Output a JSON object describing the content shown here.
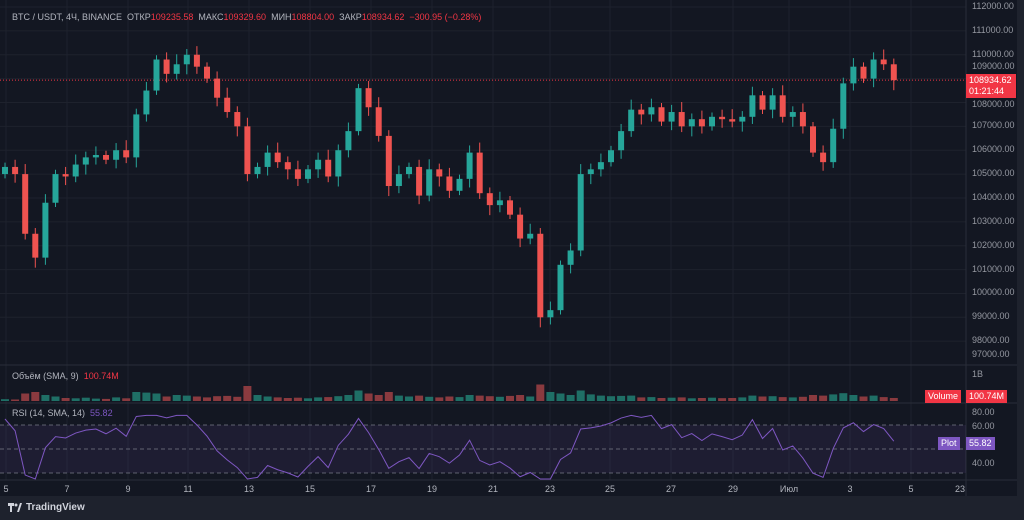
{
  "header": {
    "symbol": "BTC / USDT, 4Ч, BINANCE",
    "open_label": "ОТКР",
    "open": "109235.58",
    "high_label": "МАКС",
    "high": "109329.60",
    "low_label": "МИН",
    "low": "108804.00",
    "close_label": "ЗАКР",
    "close": "108934.62",
    "change": "−300.95 (−0.28%)"
  },
  "price_axis": [
    "112000.00",
    "111000.00",
    "110000.00",
    "109000.00",
    "108000.00",
    "107000.00",
    "106000.00",
    "105000.00",
    "104000.00",
    "103000.00",
    "102000.00",
    "101000.00",
    "100000.00",
    "99000.00",
    "98000.00",
    "97000.00"
  ],
  "current_price": {
    "value": "108934.62",
    "countdown": "01:21:44"
  },
  "volume": {
    "legend": "Объём (SMA, 9)",
    "value": "100.74M",
    "axis_top": "1B",
    "tag": "Volume",
    "tag_value": "100.74M"
  },
  "rsi": {
    "legend": "RSI (14, SMA, 14)",
    "value": "55.82",
    "axis": [
      "80.00",
      "60.00",
      "40.00"
    ],
    "tag": "Plot",
    "tag_value": "55.82"
  },
  "time_axis": [
    "5",
    "7",
    "9",
    "11",
    "13",
    "15",
    "17",
    "19",
    "21",
    "23",
    "25",
    "27",
    "29",
    "Июл",
    "3",
    "5",
    "23"
  ],
  "footer": {
    "brand": "TradingView"
  },
  "colors": {
    "up": "#26a69a",
    "down": "#ef5350",
    "rsi": "#7e57c2",
    "bg": "#131722"
  },
  "chart_data": {
    "type": "candlestick",
    "first_open": 105000,
    "closes": [
      105300,
      105000,
      102500,
      101500,
      103800,
      105000,
      104900,
      105400,
      105700,
      105800,
      105600,
      106000,
      105700,
      107500,
      108500,
      109800,
      109200,
      109600,
      110000,
      109500,
      109000,
      108200,
      107600,
      107000,
      105000,
      105300,
      105900,
      105500,
      105200,
      104800,
      105200,
      105600,
      104900,
      106000,
      106800,
      108600,
      107800,
      106600,
      104500,
      105000,
      105300,
      104100,
      105200,
      104900,
      104300,
      104800,
      105900,
      104200,
      103700,
      103900,
      103300,
      102300,
      102500,
      99000,
      99300,
      101200,
      101800,
      105000,
      105200,
      105500,
      106000,
      106800,
      107700,
      107500,
      107800,
      107200,
      107600,
      107000,
      107300,
      107000,
      107400,
      107300,
      107200,
      107400,
      108300,
      107700,
      108300,
      107400,
      107600,
      107000,
      105900,
      105500,
      106900,
      108800,
      109500,
      109000,
      109800,
      109600,
      108934.62
    ],
    "volumes_m": [
      60,
      50,
      250,
      300,
      200,
      150,
      100,
      90,
      110,
      80,
      70,
      120,
      90,
      300,
      280,
      250,
      150,
      200,
      180,
      150,
      120,
      160,
      170,
      140,
      500,
      200,
      150,
      120,
      100,
      110,
      90,
      120,
      130,
      160,
      200,
      350,
      250,
      200,
      300,
      180,
      150,
      180,
      140,
      120,
      150,
      130,
      200,
      180,
      160,
      140,
      170,
      200,
      150,
      550,
      300,
      250,
      200,
      350,
      220,
      180,
      160,
      170,
      180,
      120,
      130,
      100,
      110,
      120,
      90,
      100,
      110,
      95,
      100,
      120,
      180,
      150,
      160,
      130,
      120,
      140,
      200,
      180,
      220,
      260,
      200,
      150,
      180,
      130,
      100.74
    ],
    "ylim": [
      97000,
      112000
    ]
  }
}
